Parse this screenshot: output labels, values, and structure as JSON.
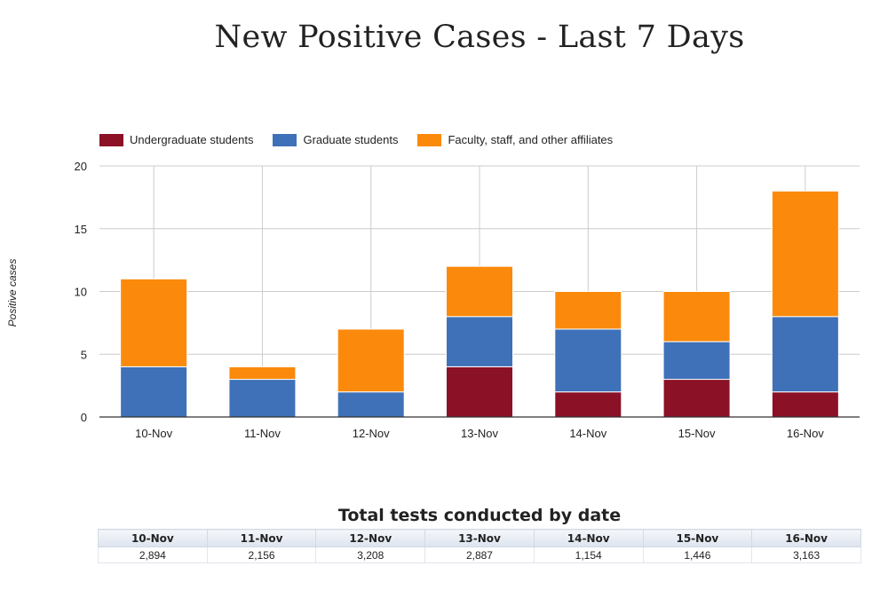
{
  "chart_data": {
    "type": "bar",
    "stacked": true,
    "title": "New Positive Cases - Last 7 Days",
    "ylabel": "Positive cases",
    "ylim": [
      0,
      20
    ],
    "yticks": [
      "0",
      "5",
      "10",
      "15",
      "20"
    ],
    "grid": true,
    "legend": "top-left",
    "categories": [
      "10-Nov",
      "11-Nov",
      "12-Nov",
      "13-Nov",
      "14-Nov",
      "15-Nov",
      "16-Nov"
    ],
    "series": [
      {
        "name": "Undergraduate students",
        "color": "#8b1127",
        "values": [
          0,
          0,
          0,
          4,
          2,
          3,
          2
        ]
      },
      {
        "name": "Graduate students",
        "color": "#3f71b8",
        "values": [
          4,
          3,
          2,
          4,
          5,
          3,
          6
        ]
      },
      {
        "name": "Faculty, staff, and other affiliates",
        "color": "#fb8a0c",
        "values": [
          7,
          1,
          5,
          4,
          3,
          4,
          10
        ]
      }
    ]
  },
  "tests_table": {
    "title": "Total tests conducted by date",
    "headers": [
      "10-Nov",
      "11-Nov",
      "12-Nov",
      "13-Nov",
      "14-Nov",
      "15-Nov",
      "16-Nov"
    ],
    "values": [
      "2,894",
      "2,156",
      "3,208",
      "2,887",
      "1,154",
      "1,446",
      "3,163"
    ]
  }
}
